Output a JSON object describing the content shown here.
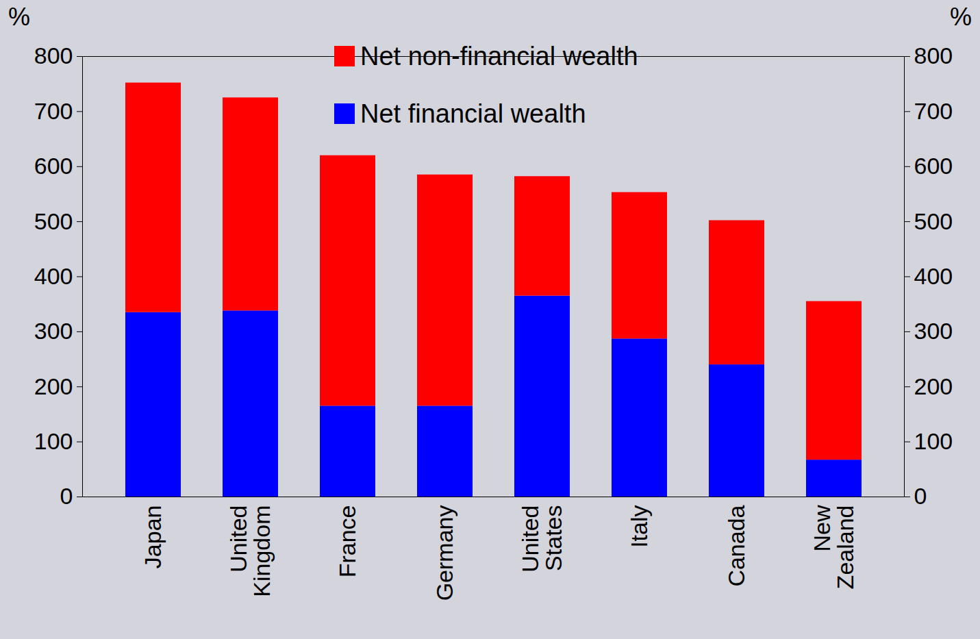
{
  "chart_data": {
    "type": "bar",
    "stacked": true,
    "categories": [
      "Japan",
      "United Kingdom",
      "France",
      "Germany",
      "United States",
      "Italy",
      "Canada",
      "New Zealand"
    ],
    "series": [
      {
        "name": "Net non-financial wealth",
        "color": "#ff0000",
        "values": [
          417,
          387,
          455,
          420,
          217,
          266,
          262,
          288
        ]
      },
      {
        "name": "Net financial wealth",
        "color": "#0000ff",
        "values": [
          335,
          338,
          165,
          165,
          365,
          287,
          240,
          67
        ]
      }
    ],
    "ylabel": "%",
    "y2label": "%",
    "ylim": [
      0,
      800
    ],
    "yticks": [
      0,
      100,
      200,
      300,
      400,
      500,
      600,
      700,
      800
    ],
    "y2lim": [
      0,
      800
    ],
    "y2ticks": [
      0,
      100,
      200,
      300,
      400,
      500,
      600,
      700,
      800
    ],
    "legend": "top",
    "grid": false
  }
}
